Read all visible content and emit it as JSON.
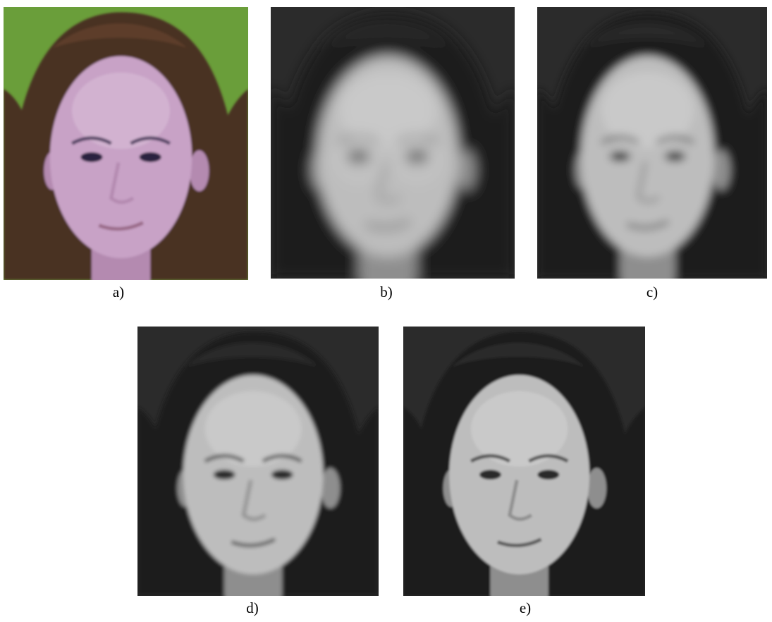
{
  "figure": {
    "panels": [
      {
        "label": "a)"
      },
      {
        "label": "b)"
      },
      {
        "label": "c)"
      },
      {
        "label": "d)"
      },
      {
        "label": "e)"
      }
    ]
  }
}
